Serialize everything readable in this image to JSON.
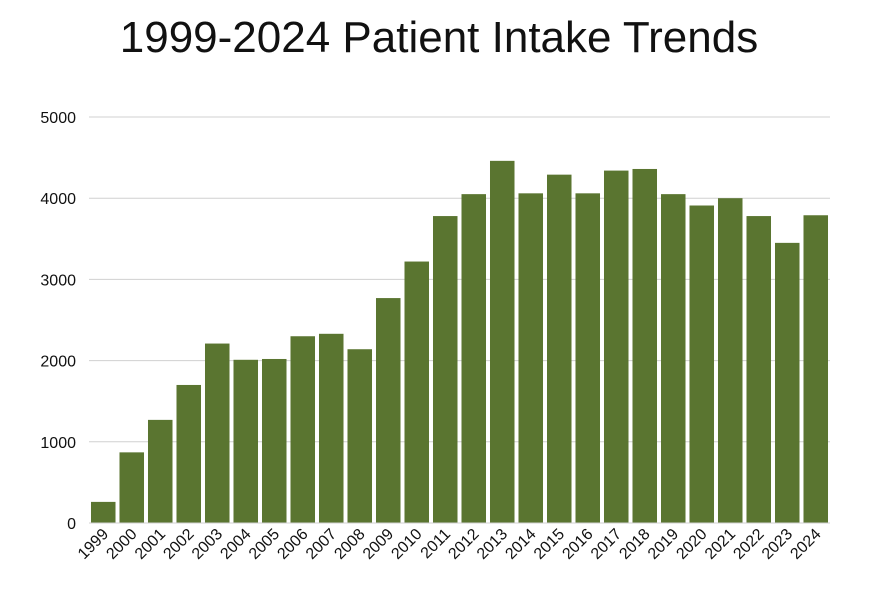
{
  "chart_data": {
    "type": "bar",
    "title": "1999-2024 Patient Intake Trends",
    "xlabel": "",
    "ylabel": "",
    "ylim": [
      0,
      5000
    ],
    "yticks": [
      "0",
      "1000",
      "2000",
      "3000",
      "4000",
      "5000"
    ],
    "grid": "horizontal",
    "bar_color": "#5A7530",
    "categories": [
      "1999",
      "2000",
      "2001",
      "2002",
      "2003",
      "2004",
      "2005",
      "2006",
      "2007",
      "2008",
      "2009",
      "2010",
      "2011",
      "2012",
      "2013",
      "2014",
      "2015",
      "2016",
      "2017",
      "2018",
      "2019",
      "2020",
      "2021",
      "2022",
      "2023",
      "2024"
    ],
    "values": [
      260,
      870,
      1270,
      1700,
      2210,
      2010,
      2020,
      2300,
      2330,
      2140,
      2770,
      3220,
      3780,
      4050,
      4460,
      4060,
      4290,
      4060,
      4340,
      4360,
      4050,
      3910,
      4000,
      3780,
      3450,
      3790
    ]
  }
}
